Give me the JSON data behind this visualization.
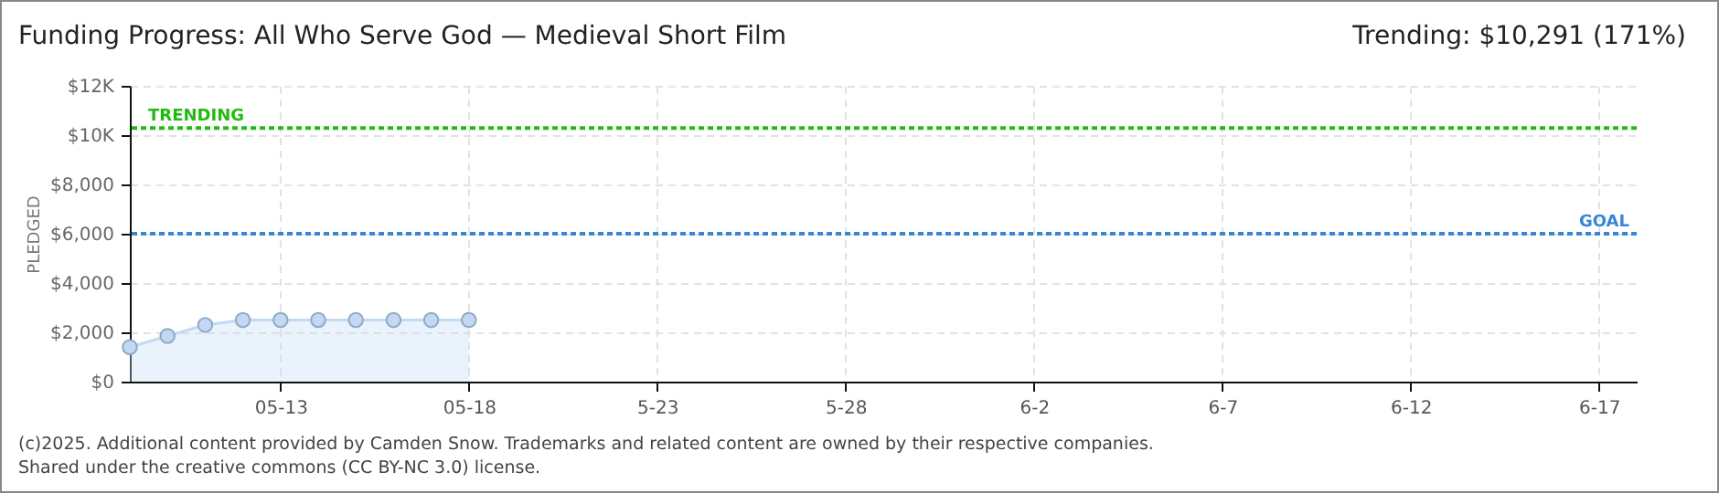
{
  "chart_data": {
    "type": "area",
    "title": "Funding Progress: All Who Serve God — Medieval Short Film",
    "subtitle": "Trending:  $10,291 (171%)",
    "ylabel": "PLEDGED",
    "x": [
      "2025-05-09",
      "2025-05-10",
      "2025-05-11",
      "2025-05-12",
      "2025-05-13",
      "2025-05-14",
      "2025-05-15",
      "2025-05-16",
      "2025-05-17",
      "2025-05-18"
    ],
    "series": [
      {
        "color": "#c3d9f3",
        "values": [
          1400,
          1850,
          2300,
          2500,
          2500,
          2500,
          2500,
          2500,
          2500,
          2500
        ]
      }
    ],
    "xlim": [
      "2025-05-09",
      "2025-06-18"
    ],
    "xticks": [
      {
        "value": "2025-05-13",
        "label": "05-13"
      },
      {
        "value": "2025-05-18",
        "label": "05-18"
      },
      {
        "value": "2025-05-23",
        "label": "5-23"
      },
      {
        "value": "2025-05-28",
        "label": "5-28"
      },
      {
        "value": "2025-06-02",
        "label": "6-2"
      },
      {
        "value": "2025-06-07",
        "label": "6-7"
      },
      {
        "value": "2025-06-12",
        "label": "6-12"
      },
      {
        "value": "2025-06-17",
        "label": "6-17"
      }
    ],
    "ylim": [
      0,
      12000
    ],
    "yticks": [
      {
        "value": 0,
        "label": "$0"
      },
      {
        "value": 2000,
        "label": "$2,000"
      },
      {
        "value": 4000,
        "label": "$4,000"
      },
      {
        "value": 6000,
        "label": "$6,000"
      },
      {
        "value": 8000,
        "label": "$8,000"
      },
      {
        "value": 10000,
        "label": "$10K"
      },
      {
        "value": 12000,
        "label": "$12K"
      }
    ],
    "ref_lines": [
      {
        "axis": "y",
        "value": 10291,
        "label": "TRENDING",
        "color": "#22bb11",
        "line_style": "dotted"
      },
      {
        "axis": "y",
        "value": 6000,
        "label": "GOAL",
        "color": "#3a86d6",
        "line_style": "dotted"
      }
    ],
    "grid": true,
    "marker": "circle",
    "annotations": [
      "(c)2025. Additional content provided by Camden Snow. Trademarks and related content are owned by their respective companies.",
      "Shared under the creative commons (CC BY-NC 3.0) license."
    ]
  }
}
